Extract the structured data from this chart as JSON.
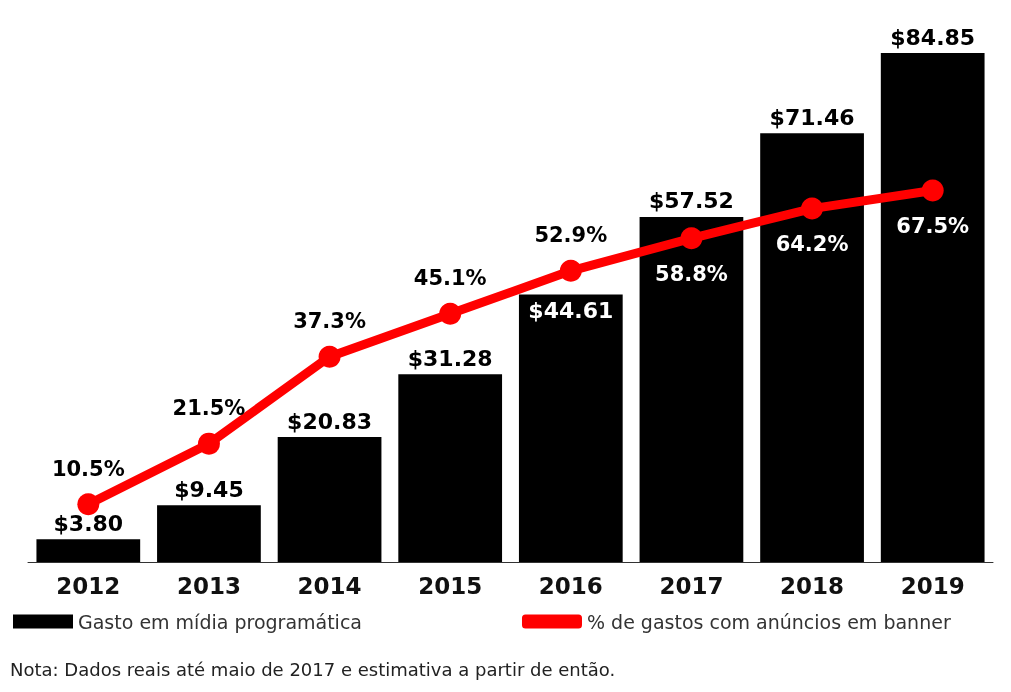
{
  "chart_data": {
    "type": "bar",
    "categories": [
      "2012",
      "2013",
      "2014",
      "2015",
      "2016",
      "2017",
      "2018",
      "2019"
    ],
    "series": [
      {
        "name": "Gasto em mídia programática",
        "color": "#000000",
        "values": [
          3.8,
          9.45,
          20.83,
          31.28,
          44.61,
          57.52,
          71.46,
          84.85
        ],
        "value_labels": [
          "$3.80",
          "$9.45",
          "$20.83",
          "$31.28",
          "$44.61",
          "$57.52",
          "$71.46",
          "$84.85"
        ]
      },
      {
        "name": "% de gastos com anúncios em banner",
        "type": "line",
        "axis": "y2",
        "color": "#ff0000",
        "values": [
          10.5,
          21.5,
          37.3,
          45.1,
          52.9,
          58.8,
          64.2,
          67.5
        ],
        "value_labels": [
          "10.5%",
          "21.5%",
          "37.3%",
          "45.1%",
          "52.9%",
          "58.8%",
          "64.2%",
          "67.5%"
        ]
      }
    ],
    "marker": "circle",
    "legend": "bottom",
    "annotations": [
      "Nota: Dados reais até maio de 2017 e estimativa a partir de então."
    ]
  }
}
